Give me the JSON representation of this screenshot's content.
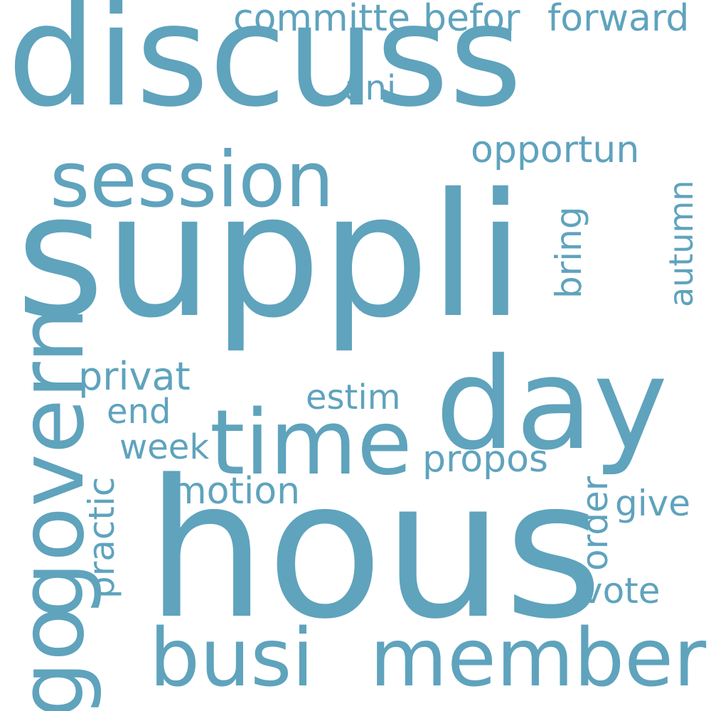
{
  "color": "#5fa3bd",
  "words": {
    "discuss": "discuss",
    "suppli": "suppli",
    "hous": "hous",
    "day": "day",
    "time": "time",
    "session": "session",
    "busi": "busi",
    "member": "member",
    "govern": "govern",
    "go": "go",
    "committe": "committe",
    "befor": "befor",
    "forward": "forward",
    "ani": "ani",
    "opportun": "opportun",
    "bring": "bring",
    "autumn": "autumn",
    "privat": "privat",
    "estim": "estim",
    "end": "end",
    "week": "week",
    "propos": "propos",
    "practic": "practic",
    "motion": "motion",
    "order": "order",
    "give": "give",
    "vote": "vote"
  }
}
